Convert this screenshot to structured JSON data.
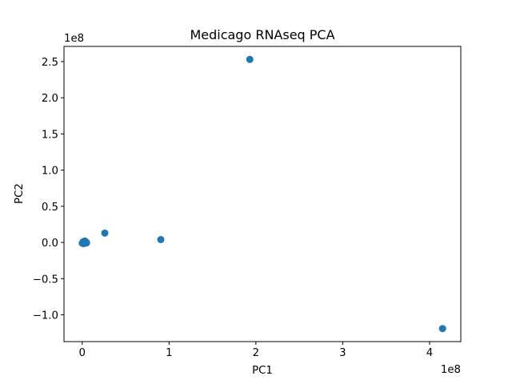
{
  "chart_data": {
    "type": "scatter",
    "title": "Medicago RNAseq PCA",
    "xlabel": "PC1",
    "ylabel": "PC2",
    "x_offset_label": "1e8",
    "y_offset_label": "1e8",
    "xlim": [
      -0.21,
      4.36
    ],
    "ylim": [
      -1.37,
      2.71
    ],
    "x_ticks": [
      0,
      1,
      2,
      3,
      4
    ],
    "x_tick_labels": [
      "0",
      "1",
      "2",
      "3",
      "4"
    ],
    "y_ticks": [
      -1.0,
      -0.5,
      0.0,
      0.5,
      1.0,
      1.5,
      2.0,
      2.5
    ],
    "y_tick_labels": [
      "−1.0",
      "−0.5",
      "0.0",
      "0.5",
      "1.0",
      "1.5",
      "2.0",
      "2.5"
    ],
    "grid": false,
    "marker_color": "#1f77b4",
    "points": [
      {
        "x": 1.93,
        "y": 2.53
      },
      {
        "x": 4.15,
        "y": -1.19
      },
      {
        "x": 0.26,
        "y": 0.13
      },
      {
        "x": 0.905,
        "y": 0.04
      },
      {
        "x": 0.01,
        "y": 0.01
      },
      {
        "x": 0.02,
        "y": 0.0
      },
      {
        "x": 0.03,
        "y": 0.02
      },
      {
        "x": 0.0,
        "y": -0.01
      },
      {
        "x": 0.04,
        "y": 0.01
      },
      {
        "x": 0.05,
        "y": -0.005
      },
      {
        "x": 0.015,
        "y": -0.015
      },
      {
        "x": 0.025,
        "y": 0.015
      },
      {
        "x": 0.035,
        "y": -0.01
      },
      {
        "x": 0.045,
        "y": 0.005
      }
    ]
  }
}
